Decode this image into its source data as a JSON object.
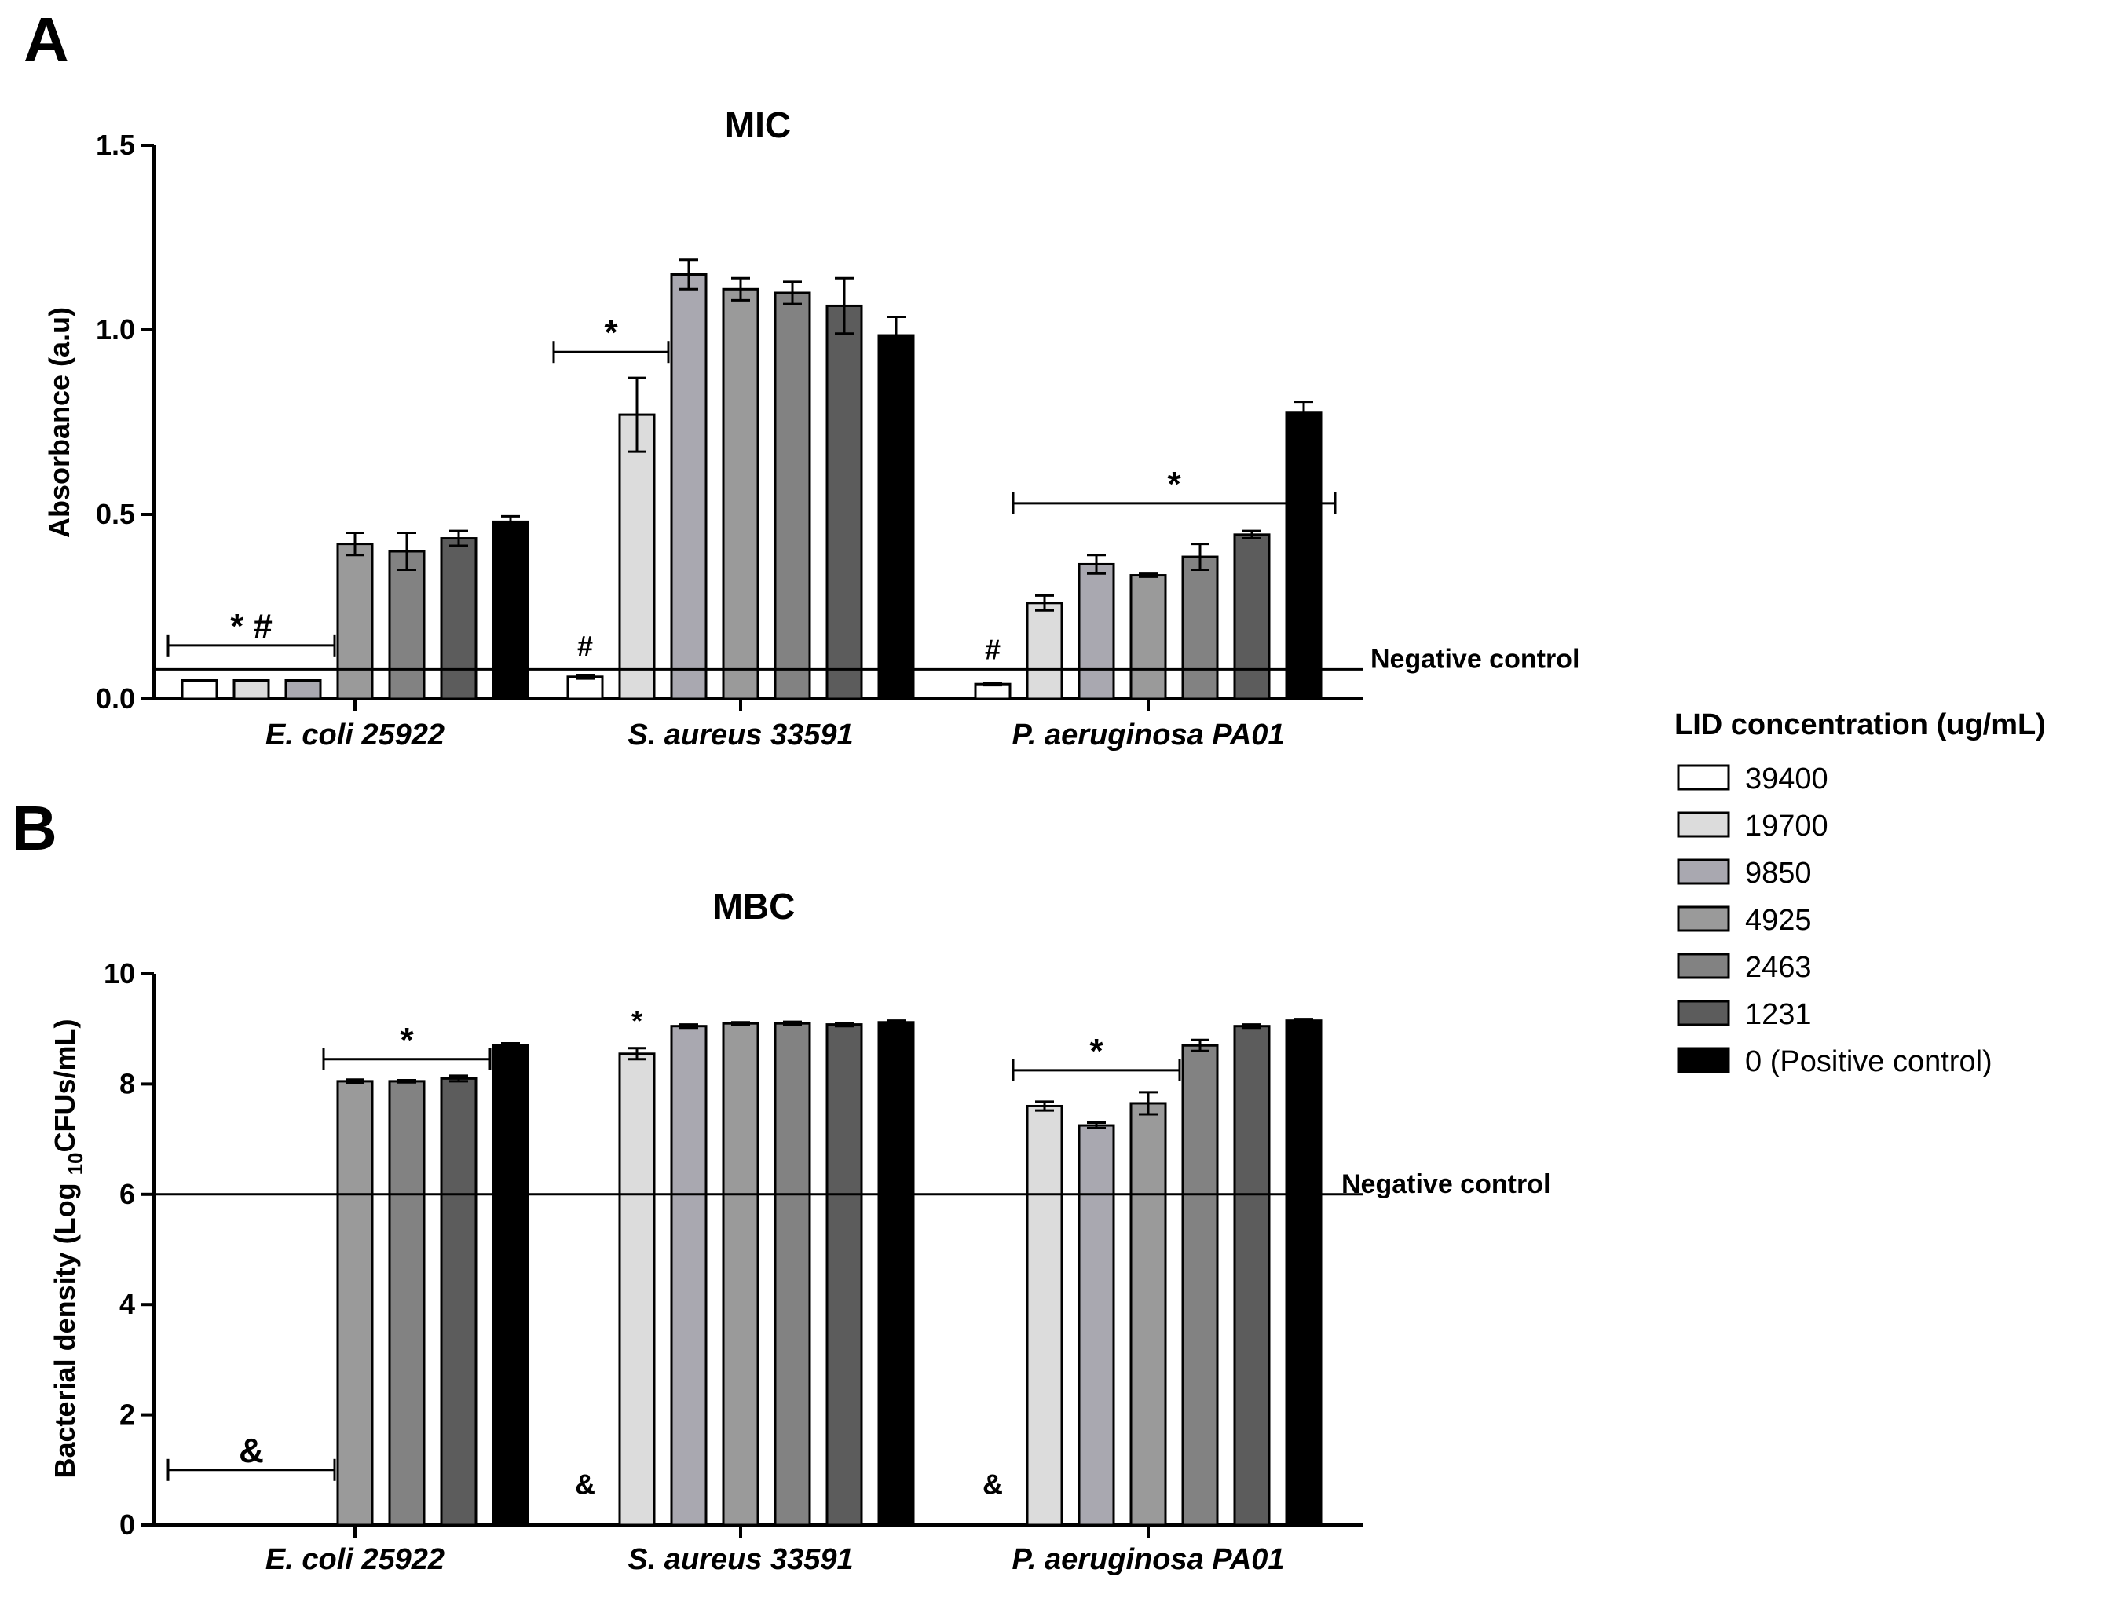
{
  "legend": {
    "title": "LID concentration (ug/mL)",
    "entries": [
      "39400",
      "19700",
      "9850",
      "4925",
      "2463",
      "1231",
      "0 (Positive control)"
    ],
    "colors": [
      "#ffffff",
      "#dcdcdc",
      "#a9a8b0",
      "#9a9a9a",
      "#828282",
      "#5c5c5c",
      "#000000"
    ]
  },
  "chart_data": [
    {
      "type": "bar",
      "panel_letter": "A",
      "title": "MIC",
      "ylabel": "Absorbance (a.u)",
      "ylim": [
        0,
        1.5
      ],
      "yticks": [
        0,
        0.5,
        1.0,
        1.5
      ],
      "ytick_labels": [
        "0.0",
        "0.5",
        "1.0",
        "1.5"
      ],
      "categories": [
        "E. coli 25922",
        "S. aureus 33591",
        "P. aeruginosa PA01"
      ],
      "negative_control": {
        "label": "Negative control",
        "value": 0.08
      },
      "series": [
        {
          "name": "39400",
          "values": [
            0.05,
            0.06,
            0.04
          ],
          "errors": [
            0,
            0.005,
            0.003
          ]
        },
        {
          "name": "19700",
          "values": [
            0.05,
            0.77,
            0.26
          ],
          "errors": [
            0,
            0.1,
            0.02
          ]
        },
        {
          "name": "9850",
          "values": [
            0.05,
            1.15,
            0.365
          ],
          "errors": [
            0,
            0.04,
            0.025
          ]
        },
        {
          "name": "4925",
          "values": [
            0.42,
            1.11,
            0.335
          ],
          "errors": [
            0.03,
            0.03,
            0.004
          ]
        },
        {
          "name": "2463",
          "values": [
            0.4,
            1.1,
            0.385
          ],
          "errors": [
            0.05,
            0.03,
            0.035
          ]
        },
        {
          "name": "1231",
          "values": [
            0.435,
            1.065,
            0.445
          ],
          "errors": [
            0.02,
            0.075,
            0.01
          ]
        },
        {
          "name": "0 (Positive control)",
          "values": [
            0.48,
            0.985,
            0.775
          ],
          "errors": [
            0.015,
            0.05,
            0.03
          ]
        }
      ],
      "annotations": [
        {
          "text": "* #",
          "category": 0,
          "from_series": 0,
          "to_series": 2,
          "y": 0.145,
          "bracket": true
        },
        {
          "text": "*",
          "category": 1,
          "from_series": 0,
          "to_series": 1,
          "y": 0.94,
          "bracket": true
        },
        {
          "text": "*",
          "category": 2,
          "from_series": 1,
          "to_series": 6,
          "y": 0.53,
          "bracket": true
        },
        {
          "text": "#",
          "category": 1,
          "series": 0,
          "y": 0.1,
          "bracket": false
        },
        {
          "text": "#",
          "category": 2,
          "series": 0,
          "y": 0.09,
          "bracket": false
        }
      ]
    },
    {
      "type": "bar",
      "panel_letter": "B",
      "title": "MBC",
      "ylabel_main": "Bacterial density (Log",
      "ylabel_sub": "10",
      "ylabel_end": "CFUs/mL)",
      "ylim": [
        0,
        10
      ],
      "yticks": [
        0,
        2,
        4,
        6,
        8,
        10
      ],
      "ytick_labels": [
        "0",
        "2",
        "4",
        "6",
        "8",
        "10"
      ],
      "categories": [
        "E. coli 25922",
        "S. aureus 33591",
        "P. aeruginosa PA01"
      ],
      "negative_control": {
        "label": "Negative control",
        "value": 6
      },
      "series": [
        {
          "name": "39400",
          "values": [
            0,
            0,
            0
          ],
          "errors": [
            0,
            0,
            0
          ]
        },
        {
          "name": "19700",
          "values": [
            0,
            8.55,
            7.6
          ],
          "errors": [
            0,
            0.1,
            0.08
          ]
        },
        {
          "name": "9850",
          "values": [
            0,
            9.05,
            7.25
          ],
          "errors": [
            0,
            0.03,
            0.05
          ]
        },
        {
          "name": "4925",
          "values": [
            8.05,
            9.1,
            7.65
          ],
          "errors": [
            0.03,
            0.02,
            0.2
          ]
        },
        {
          "name": "2463",
          "values": [
            8.05,
            9.1,
            8.7
          ],
          "errors": [
            0.02,
            0.03,
            0.1
          ]
        },
        {
          "name": "1231",
          "values": [
            8.1,
            9.08,
            9.05
          ],
          "errors": [
            0.05,
            0.03,
            0.03
          ]
        },
        {
          "name": "0 (Positive control)",
          "values": [
            8.7,
            9.12,
            9.15
          ],
          "errors": [
            0.04,
            0.03,
            0.03
          ]
        }
      ],
      "annotations": [
        {
          "text": "&",
          "category": 0,
          "from_series": 0,
          "to_series": 2,
          "y": 1.0,
          "bracket": true
        },
        {
          "text": "*",
          "category": 0,
          "from_series": 3,
          "to_series": 5,
          "y": 8.45,
          "bracket": true
        },
        {
          "text": "*",
          "category": 1,
          "series": 1,
          "y": 8.85,
          "bracket": false
        },
        {
          "text": "*",
          "category": 2,
          "from_series": 1,
          "to_series": 3,
          "y": 8.25,
          "bracket": true
        },
        {
          "text": "&",
          "category": 1,
          "series": 0,
          "y": 0.45,
          "bracket": false
        },
        {
          "text": "&",
          "category": 2,
          "series": 0,
          "y": 0.45,
          "bracket": false
        }
      ]
    }
  ]
}
